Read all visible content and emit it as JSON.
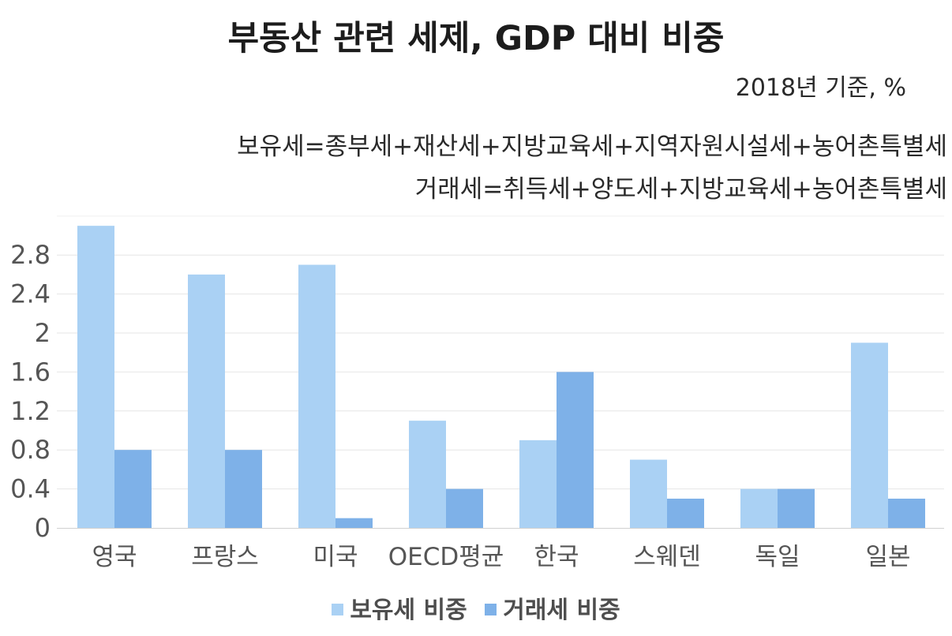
{
  "chart_data": {
    "type": "bar",
    "title": "부동산 관련 세제, GDP 대비 비중",
    "subtitle": "2018년 기준, %",
    "notes": [
      "보유세=종부세+재산세+지방교육세+지역자원시설세+농어촌특별세",
      "거래세=취득세+양도세+지방교육세+농어촌특별세"
    ],
    "categories": [
      "영국",
      "프랑스",
      "미국",
      "OECD평균",
      "한국",
      "스웨덴",
      "독일",
      "일본"
    ],
    "series": [
      {
        "name": "보유세 비중",
        "color": "#aad1f4",
        "values": [
          3.1,
          2.6,
          2.7,
          1.1,
          0.9,
          0.7,
          0.4,
          1.9
        ]
      },
      {
        "name": "거래세 비중",
        "color": "#7eb1e8",
        "values": [
          0.8,
          0.8,
          0.1,
          0.4,
          1.6,
          0.3,
          0.4,
          0.3
        ]
      }
    ],
    "yticks": [
      "0",
      "0.4",
      "0.8",
      "1.2",
      "1.6",
      "2",
      "2.4",
      "2.8"
    ],
    "ylim": [
      0,
      3.2
    ],
    "xlabel": "",
    "ylabel": "",
    "grid": true,
    "legend_position": "bottom"
  }
}
